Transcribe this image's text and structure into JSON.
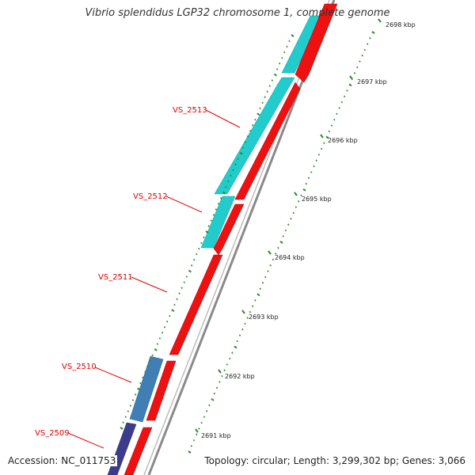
{
  "title": "Vibrio splendidus LGP32 chromosome 1, complete genome",
  "accession": "Accession: NC_011753",
  "summary": "Topology: circular; Length: 3,299,302 bp; Genes: 3,066",
  "colors": {
    "background": "#ffffff",
    "backbone": "#8a8a8a",
    "forward_gene": "#22cccc",
    "reverse_gene": "#ee1111",
    "blue_gene": "#3f7fb5",
    "navy_gene": "#3c3c8c",
    "tick": "#2a8a2a",
    "gene_label": "#e00000"
  },
  "ticks": [
    {
      "label": "2691 kbp"
    },
    {
      "label": "2692 kbp"
    },
    {
      "label": "2693 kbp"
    },
    {
      "label": "2694 kbp"
    },
    {
      "label": "2695 kbp"
    },
    {
      "label": "2696 kbp"
    },
    {
      "label": "2697 kbp"
    },
    {
      "label": "2698 kbp"
    }
  ],
  "gene_labels": [
    {
      "label": "VS_2513"
    },
    {
      "label": "VS_2512"
    },
    {
      "label": "VS_2511"
    },
    {
      "label": "VS_2510"
    },
    {
      "label": "VS_2509"
    }
  ]
}
